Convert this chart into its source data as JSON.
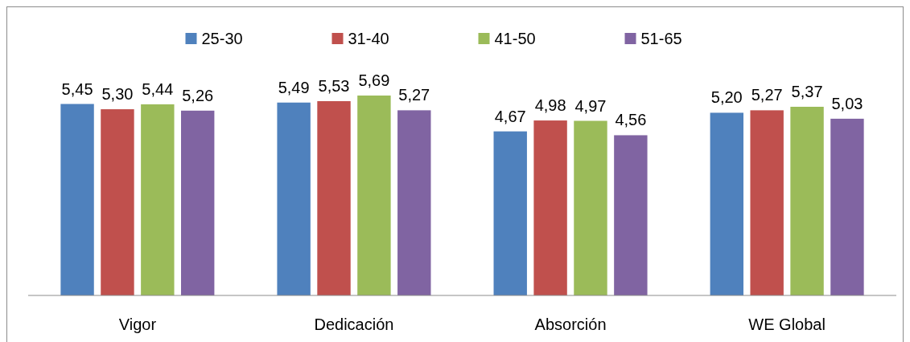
{
  "chart_data": {
    "type": "bar",
    "categories": [
      "Vigor",
      "Dedicación",
      "Absorción",
      "WE Global"
    ],
    "series": [
      {
        "name": "25-30",
        "color": "#4f81bd",
        "values": [
          5.45,
          5.49,
          4.67,
          5.2
        ],
        "value_labels": [
          "5,45",
          "5,49",
          "4,67",
          "5,20"
        ]
      },
      {
        "name": "31-40",
        "color": "#c0504d",
        "values": [
          5.3,
          5.53,
          4.98,
          5.27
        ],
        "value_labels": [
          "5,30",
          "5,53",
          "4,98",
          "5,27"
        ]
      },
      {
        "name": "41-50",
        "color": "#9bbb59",
        "values": [
          5.44,
          5.69,
          4.97,
          5.37
        ],
        "value_labels": [
          "5,44",
          "5,69",
          "4,97",
          "5,37"
        ]
      },
      {
        "name": "51-65",
        "color": "#8064a2",
        "values": [
          5.26,
          5.27,
          4.56,
          5.03
        ],
        "value_labels": [
          "5,26",
          "5,27",
          "4,56",
          "5,03"
        ]
      }
    ],
    "tick_labels": "x",
    "legend": "top"
  }
}
